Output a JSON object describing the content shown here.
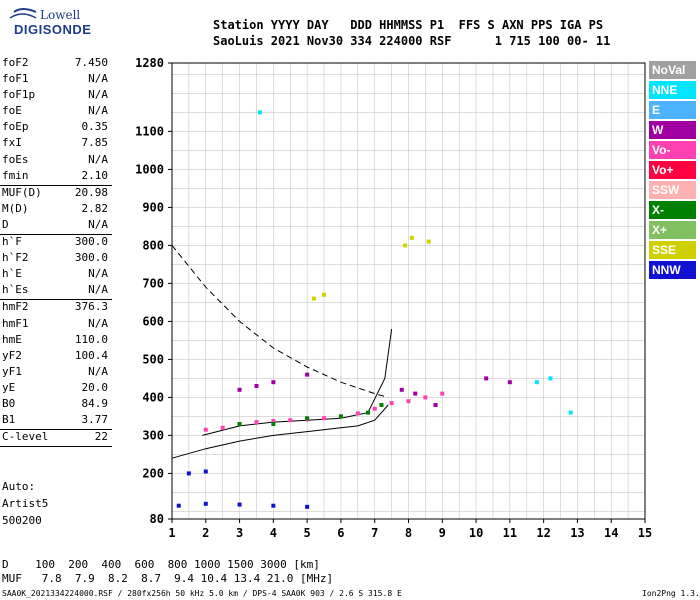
{
  "logo": {
    "line1": "Lowell",
    "line2": "DIGISONDE"
  },
  "header": {
    "line1": "Station YYYY DAY   DDD HHMMSS P1  FFS S AXN PPS IGA PS",
    "line2": "SaoLuis 2021 Nov30 334 224000 RSF      1 715 100 00- 11"
  },
  "params": [
    {
      "k": "foF2",
      "v": "7.450"
    },
    {
      "k": "foF1",
      "v": "N/A"
    },
    {
      "k": "foF1p",
      "v": "N/A"
    },
    {
      "k": "foE",
      "v": "N/A"
    },
    {
      "k": "foEp",
      "v": "0.35"
    },
    {
      "k": "fxI",
      "v": "7.85"
    },
    {
      "k": "foEs",
      "v": "N/A"
    },
    {
      "k": "fmin",
      "v": "2.10"
    },
    {
      "k": "MUF(D)",
      "v": "20.98"
    },
    {
      "k": "M(D)",
      "v": "2.82"
    },
    {
      "k": "D",
      "v": "N/A"
    },
    {
      "k": "h`F",
      "v": "300.0"
    },
    {
      "k": "h`F2",
      "v": "300.0"
    },
    {
      "k": "h`E",
      "v": "N/A"
    },
    {
      "k": "h`Es",
      "v": "N/A"
    },
    {
      "k": "hmF2",
      "v": "376.3"
    },
    {
      "k": "hmF1",
      "v": "N/A"
    },
    {
      "k": "hmE",
      "v": "110.0"
    },
    {
      "k": "yF2",
      "v": "100.4"
    },
    {
      "k": "yF1",
      "v": "N/A"
    },
    {
      "k": "yE",
      "v": "20.0"
    },
    {
      "k": "B0",
      "v": "84.9"
    },
    {
      "k": "B1",
      "v": "3.77"
    },
    {
      "k": "C-level",
      "v": "22"
    }
  ],
  "auto": {
    "line1": "Auto:",
    "line2": "Artist5",
    "line3": "500200"
  },
  "legend": [
    {
      "label": "NoVal",
      "color": "#a0a0a0"
    },
    {
      "label": "NNE",
      "color": "#00e5ff"
    },
    {
      "label": "E",
      "color": "#4db3ff"
    },
    {
      "label": "W",
      "color": "#a000a0"
    },
    {
      "label": "Vo-",
      "color": "#ff40b0"
    },
    {
      "label": "Vo+",
      "color": "#ff0040"
    },
    {
      "label": "SSW",
      "color": "#ffb0b0"
    },
    {
      "label": "X-",
      "color": "#008000"
    },
    {
      "label": "X+",
      "color": "#80c060"
    },
    {
      "label": "SSE",
      "color": "#d0d000"
    },
    {
      "label": "NNW",
      "color": "#1010d0"
    }
  ],
  "bottom": {
    "d_row": "D    100  200  400  600  800 1000 1500 3000 [km]",
    "muf_row": "MUF   7.8  7.9  8.2  8.7  9.4 10.4 13.4 21.0 [MHz]"
  },
  "footer": {
    "left": "SAA0K_2021334224000.RSF / 280fx256h 50 kHz 5.0 km / DPS-4 SAA0K 903 / 2.6 S 315.8 E",
    "right": "Ion2Png 1.3.17"
  },
  "chart_data": {
    "type": "scatter",
    "title": "",
    "xlabel": "",
    "ylabel": "",
    "xlim": [
      1,
      15
    ],
    "ylim": [
      80,
      1280
    ],
    "x_ticks": [
      1,
      2,
      3,
      4,
      5,
      6,
      7,
      8,
      9,
      10,
      11,
      12,
      13,
      14,
      15
    ],
    "y_ticks": [
      80,
      200,
      300,
      400,
      500,
      600,
      700,
      800,
      900,
      1000,
      1100,
      1280
    ],
    "grid": true,
    "legend_position": "right",
    "series": [
      {
        "name": "Vo-",
        "color": "#ff40b0",
        "points": [
          [
            2.0,
            315
          ],
          [
            2.5,
            320
          ],
          [
            3.0,
            330
          ],
          [
            3.5,
            335
          ],
          [
            4.0,
            338
          ],
          [
            4.5,
            340
          ],
          [
            5.0,
            342
          ],
          [
            5.5,
            345
          ],
          [
            6.0,
            350
          ],
          [
            6.5,
            358
          ],
          [
            7.0,
            370
          ],
          [
            7.5,
            385
          ],
          [
            8.0,
            390
          ],
          [
            8.5,
            400
          ],
          [
            9.0,
            410
          ]
        ]
      },
      {
        "name": "W",
        "color": "#a000a0",
        "points": [
          [
            3.0,
            420
          ],
          [
            3.5,
            430
          ],
          [
            4.0,
            440
          ],
          [
            5.0,
            460
          ],
          [
            7.8,
            420
          ],
          [
            8.2,
            410
          ],
          [
            8.8,
            380
          ],
          [
            10.3,
            450
          ],
          [
            11.0,
            440
          ]
        ]
      },
      {
        "name": "NNE",
        "color": "#00e5ff",
        "points": [
          [
            3.6,
            1150
          ],
          [
            11.8,
            440
          ],
          [
            12.2,
            450
          ],
          [
            12.8,
            360
          ]
        ]
      },
      {
        "name": "NNW",
        "color": "#1010d0",
        "points": [
          [
            1.2,
            115
          ],
          [
            2.0,
            120
          ],
          [
            3.0,
            118
          ],
          [
            4.0,
            115
          ],
          [
            5.0,
            112
          ],
          [
            1.5,
            200
          ],
          [
            2.0,
            205
          ]
        ]
      },
      {
        "name": "SSE",
        "color": "#d0d000",
        "points": [
          [
            5.2,
            660
          ],
          [
            5.5,
            670
          ],
          [
            7.9,
            800
          ],
          [
            8.1,
            820
          ],
          [
            8.6,
            810
          ]
        ]
      },
      {
        "name": "X-",
        "color": "#008000",
        "points": [
          [
            3.0,
            330
          ],
          [
            4.0,
            330
          ],
          [
            5.0,
            345
          ],
          [
            6.0,
            350
          ],
          [
            6.8,
            360
          ],
          [
            7.2,
            380
          ]
        ]
      }
    ],
    "lines": [
      {
        "name": "",
        "style": "dashed",
        "x": [
          1,
          2,
          3,
          4,
          5,
          6,
          7,
          7.4
        ],
        "y": [
          800,
          690,
          600,
          530,
          480,
          440,
          410,
          400
        ]
      },
      {
        "name": "",
        "style": "solid",
        "x": [
          1,
          2,
          3,
          4,
          5,
          6,
          6.5,
          7,
          7.4
        ],
        "y": [
          240,
          265,
          285,
          300,
          310,
          320,
          325,
          340,
          380
        ]
      },
      {
        "name": "",
        "style": "solid",
        "x": [
          1.9,
          3,
          4,
          5,
          6,
          6.8,
          7.3,
          7.5
        ],
        "y": [
          300,
          325,
          335,
          340,
          345,
          360,
          450,
          580
        ]
      }
    ]
  }
}
